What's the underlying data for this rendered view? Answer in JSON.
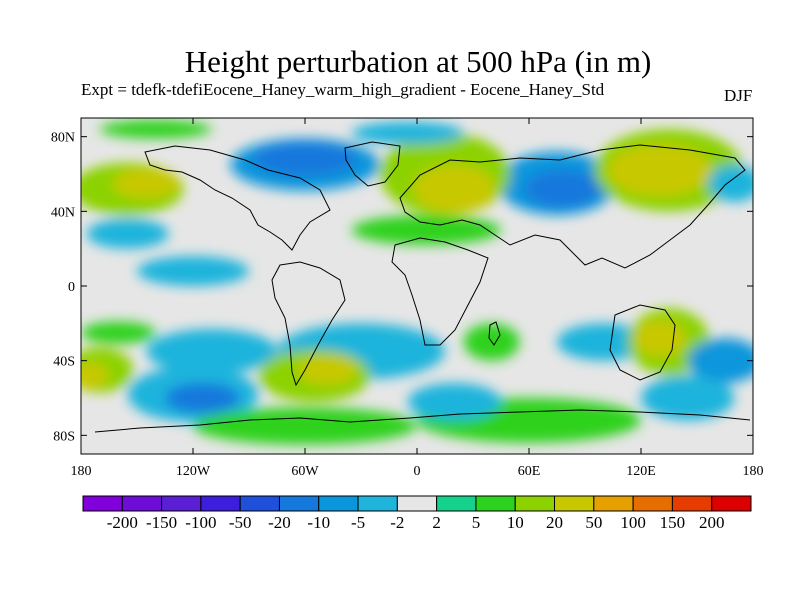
{
  "title": "Height perturbation at 500 hPa (in m)",
  "subtitle": "Expt = tdefk-tdefiEocene_Haney_warm_high_gradient - Eocene_Haney_Std",
  "season": "DJF",
  "map": {
    "projection": "cylindrical equidistant",
    "x_ticks": [
      "180",
      "120W",
      "60W",
      "0",
      "60E",
      "120E",
      "180"
    ],
    "y_ticks": [
      "80N",
      "40N",
      "0",
      "40S",
      "80S"
    ],
    "lon_range": [
      -180,
      180
    ],
    "lat_range": [
      -90,
      90
    ]
  },
  "colorbar": {
    "labels": [
      "-200",
      "-150",
      "-100",
      "-50",
      "-20",
      "-10",
      "-5",
      "-2",
      "2",
      "5",
      "10",
      "20",
      "50",
      "100",
      "150",
      "200"
    ],
    "colors": [
      "#8200dc",
      "#6e0cd8",
      "#5a1ed4",
      "#3c1edc",
      "#1e50dc",
      "#1478dc",
      "#0a96dc",
      "#1eb4dc",
      "#e6e6e6",
      "#14d28c",
      "#2dd21e",
      "#8cd200",
      "#c8c800",
      "#e6a000",
      "#e66e00",
      "#e63c00",
      "#dc0000"
    ]
  },
  "regions": [
    {
      "lon": -60,
      "lat": 65,
      "rlon": 40,
      "rlat": 14,
      "level": 6
    },
    {
      "lon": -60,
      "lat": 68,
      "rlon": 28,
      "rlat": 9,
      "level": 5
    },
    {
      "lon": 75,
      "lat": 55,
      "rlon": 32,
      "rlat": 17,
      "level": 6
    },
    {
      "lon": 78,
      "lat": 52,
      "rlon": 20,
      "rlat": 10,
      "level": 5
    },
    {
      "lon": -155,
      "lat": 52,
      "rlon": 30,
      "rlat": 14,
      "level": 11
    },
    {
      "lon": -145,
      "lat": 55,
      "rlon": 18,
      "rlat": 8,
      "level": 12
    },
    {
      "lon": 135,
      "lat": 62,
      "rlon": 40,
      "rlat": 22,
      "level": 11
    },
    {
      "lon": 130,
      "lat": 62,
      "rlon": 28,
      "rlat": 14,
      "level": 12
    },
    {
      "lon": 15,
      "lat": 60,
      "rlon": 35,
      "rlat": 22,
      "level": 11
    },
    {
      "lon": 20,
      "lat": 52,
      "rlon": 22,
      "rlat": 13,
      "level": 12
    },
    {
      "lon": 170,
      "lat": 55,
      "rlon": 14,
      "rlat": 10,
      "level": 7
    },
    {
      "lon": -155,
      "lat": 28,
      "rlon": 22,
      "rlat": 8,
      "level": 7
    },
    {
      "lon": -120,
      "lat": 8,
      "rlon": 30,
      "rlat": 8,
      "level": 7
    },
    {
      "lon": 5,
      "lat": 30,
      "rlon": 40,
      "rlat": 8,
      "level": 10
    },
    {
      "lon": -160,
      "lat": -25,
      "rlon": 20,
      "rlat": 6,
      "level": 10
    },
    {
      "lon": -110,
      "lat": -35,
      "rlon": 35,
      "rlat": 12,
      "level": 7
    },
    {
      "lon": -30,
      "lat": -35,
      "rlon": 45,
      "rlat": 15,
      "level": 7
    },
    {
      "lon": 40,
      "lat": -30,
      "rlon": 15,
      "rlat": 10,
      "level": 10
    },
    {
      "lon": 100,
      "lat": -30,
      "rlon": 25,
      "rlat": 10,
      "level": 7
    },
    {
      "lon": 135,
      "lat": -30,
      "rlon": 22,
      "rlat": 18,
      "level": 11
    },
    {
      "lon": 130,
      "lat": -28,
      "rlon": 14,
      "rlat": 10,
      "level": 12
    },
    {
      "lon": 165,
      "lat": -40,
      "rlon": 20,
      "rlat": 12,
      "level": 6
    },
    {
      "lon": -55,
      "lat": -48,
      "rlon": 30,
      "rlat": 14,
      "level": 11
    },
    {
      "lon": -48,
      "lat": -45,
      "rlon": 16,
      "rlat": 8,
      "level": 12
    },
    {
      "lon": -170,
      "lat": -45,
      "rlon": 18,
      "rlat": 12,
      "level": 11
    },
    {
      "lon": -175,
      "lat": -48,
      "rlon": 10,
      "rlat": 7,
      "level": 12
    },
    {
      "lon": -120,
      "lat": -58,
      "rlon": 35,
      "rlat": 15,
      "level": 7
    },
    {
      "lon": -115,
      "lat": -60,
      "rlon": 20,
      "rlat": 8,
      "level": 5
    },
    {
      "lon": -60,
      "lat": -75,
      "rlon": 60,
      "rlat": 10,
      "level": 10
    },
    {
      "lon": 60,
      "lat": -72,
      "rlon": 60,
      "rlat": 12,
      "level": 10
    },
    {
      "lon": 20,
      "lat": -62,
      "rlon": 25,
      "rlat": 10,
      "level": 7
    },
    {
      "lon": 145,
      "lat": -60,
      "rlon": 25,
      "rlat": 12,
      "level": 7
    },
    {
      "lon": -5,
      "lat": 82,
      "rlon": 30,
      "rlat": 6,
      "level": 7
    },
    {
      "lon": -140,
      "lat": 84,
      "rlon": 30,
      "rlat": 5,
      "level": 10
    }
  ]
}
